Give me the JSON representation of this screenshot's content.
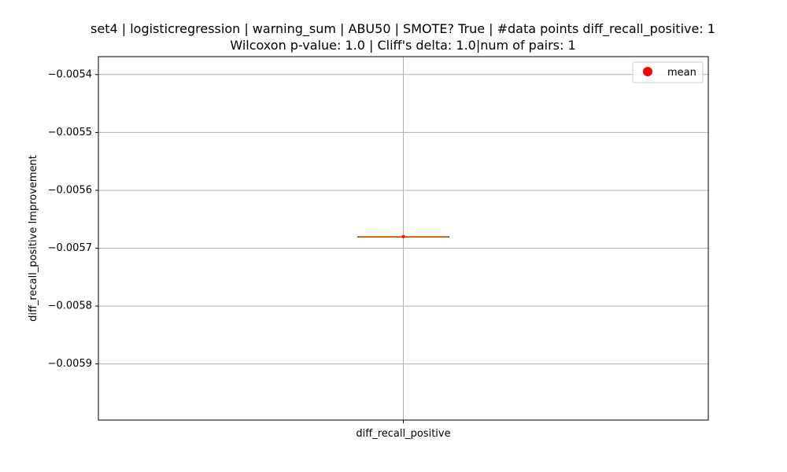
{
  "chart_data": {
    "type": "box",
    "title": "set4 | logisticregression | warning_sum | ABU50 | SMOTE? True | #data points diff_recall_positive: 1",
    "subtitle": "Wilcoxon p-value: 1.0 | Cliff's delta: 1.0|num of pairs: 1",
    "xlabel": "",
    "ylabel": "diff_recall_positive Improvement",
    "categories": [
      "diff_recall_positive"
    ],
    "box": {
      "min": -0.00568,
      "q1": -0.00568,
      "median": -0.00568,
      "q3": -0.00568,
      "max": -0.00568,
      "mean": -0.00568
    },
    "ylim": [
      -0.005997,
      -0.005369
    ],
    "yticks": [
      -0.0054,
      -0.0055,
      -0.0056,
      -0.0057,
      -0.0058,
      -0.0059
    ],
    "ytick_labels": [
      "−0.0054",
      "−0.0055",
      "−0.0056",
      "−0.0057",
      "−0.0058",
      "−0.0059"
    ],
    "grid": true,
    "legend": {
      "placement": "top-right",
      "entries": [
        {
          "label": "mean",
          "color": "#ff0000",
          "marker": "circle"
        }
      ]
    },
    "colors": {
      "median": "#ff7f0e",
      "mean": "#ff0000",
      "box": "#000000",
      "grid": "#b0b0b0"
    }
  }
}
